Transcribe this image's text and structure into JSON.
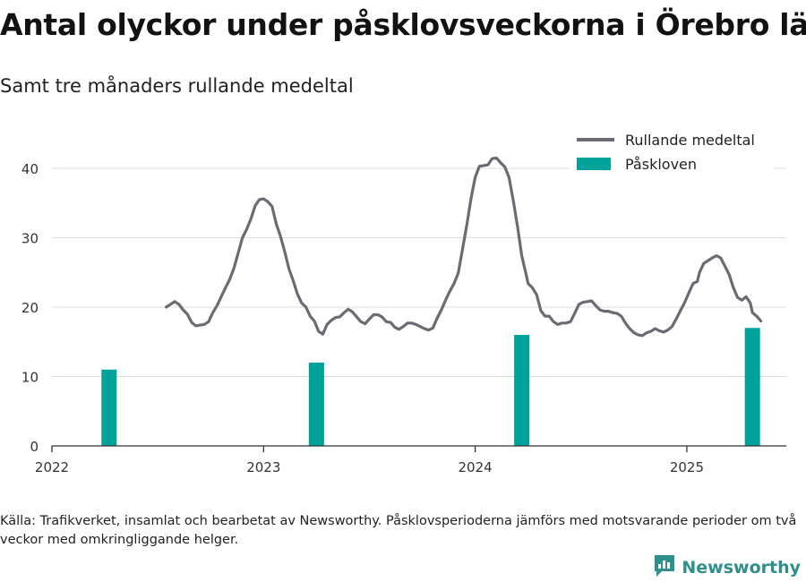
{
  "title": "Antal olyckor under påsklovsveckorna i Örebro län",
  "subtitle": "Samt tre månaders rullande medeltal",
  "source": "Källa: Trafikverket, insamlat och bearbetat av Newsworthy. Påsklovsperioderna jämförs med motsvarande perioder om två veckor med omkringliggande helger.",
  "brand": {
    "name": "Newsworthy",
    "logo_icon": "bar-chart-icon",
    "color": "#2f8f8c"
  },
  "chart_data": {
    "type": "bar",
    "xlim": [
      2022.0,
      2025.47
    ],
    "ylim": [
      0,
      40
    ],
    "yticks": [
      0,
      10,
      20,
      30,
      40
    ],
    "xticks": [
      {
        "value": 2022,
        "label": "2022"
      },
      {
        "value": 2023,
        "label": "2023"
      },
      {
        "value": 2024,
        "label": "2024"
      },
      {
        "value": 2025,
        "label": "2025"
      }
    ],
    "grid": "horizontal",
    "legend": {
      "placement": "top-right"
    },
    "series": [
      {
        "name": "Rullande medeltal",
        "kind": "line",
        "color": "#6b6b73",
        "points": [
          [
            2022.54,
            20.0
          ],
          [
            2022.56,
            20.4
          ],
          [
            2022.58,
            20.8
          ],
          [
            2022.6,
            20.4
          ],
          [
            2022.62,
            19.6
          ],
          [
            2022.64,
            19.0
          ],
          [
            2022.66,
            17.8
          ],
          [
            2022.68,
            17.3
          ],
          [
            2022.7,
            17.4
          ],
          [
            2022.72,
            17.5
          ],
          [
            2022.74,
            17.9
          ],
          [
            2022.76,
            19.2
          ],
          [
            2022.78,
            20.2
          ],
          [
            2022.8,
            21.5
          ],
          [
            2022.82,
            22.8
          ],
          [
            2022.84,
            24.0
          ],
          [
            2022.86,
            25.6
          ],
          [
            2022.88,
            27.8
          ],
          [
            2022.9,
            30.0
          ],
          [
            2022.92,
            31.2
          ],
          [
            2022.94,
            32.7
          ],
          [
            2022.96,
            34.6
          ],
          [
            2022.98,
            35.5
          ],
          [
            2023.0,
            35.6
          ],
          [
            2023.02,
            35.2
          ],
          [
            2023.04,
            34.5
          ],
          [
            2023.06,
            32.0
          ],
          [
            2023.08,
            30.2
          ],
          [
            2023.1,
            28.0
          ],
          [
            2023.12,
            25.5
          ],
          [
            2023.14,
            23.8
          ],
          [
            2023.16,
            21.9
          ],
          [
            2023.18,
            20.6
          ],
          [
            2023.2,
            20.0
          ],
          [
            2023.22,
            18.7
          ],
          [
            2023.24,
            18.0
          ],
          [
            2023.26,
            16.5
          ],
          [
            2023.28,
            16.1
          ],
          [
            2023.3,
            17.5
          ],
          [
            2023.32,
            18.1
          ],
          [
            2023.34,
            18.5
          ],
          [
            2023.36,
            18.6
          ],
          [
            2023.38,
            19.2
          ],
          [
            2023.4,
            19.7
          ],
          [
            2023.42,
            19.3
          ],
          [
            2023.44,
            18.6
          ],
          [
            2023.46,
            17.9
          ],
          [
            2023.48,
            17.6
          ],
          [
            2023.5,
            18.3
          ],
          [
            2023.52,
            18.9
          ],
          [
            2023.54,
            18.9
          ],
          [
            2023.56,
            18.6
          ],
          [
            2023.58,
            17.9
          ],
          [
            2023.6,
            17.8
          ],
          [
            2023.62,
            17.1
          ],
          [
            2023.64,
            16.8
          ],
          [
            2023.66,
            17.2
          ],
          [
            2023.68,
            17.7
          ],
          [
            2023.7,
            17.7
          ],
          [
            2023.72,
            17.5
          ],
          [
            2023.74,
            17.2
          ],
          [
            2023.76,
            16.9
          ],
          [
            2023.78,
            16.7
          ],
          [
            2023.8,
            17.0
          ],
          [
            2023.82,
            18.4
          ],
          [
            2023.84,
            19.6
          ],
          [
            2023.86,
            21.0
          ],
          [
            2023.88,
            22.3
          ],
          [
            2023.9,
            23.4
          ],
          [
            2023.92,
            24.9
          ],
          [
            2023.94,
            28.3
          ],
          [
            2023.96,
            31.8
          ],
          [
            2023.98,
            35.6
          ],
          [
            2024.0,
            38.7
          ],
          [
            2024.02,
            40.3
          ],
          [
            2024.04,
            40.4
          ],
          [
            2024.06,
            40.5
          ],
          [
            2024.08,
            41.4
          ],
          [
            2024.1,
            41.5
          ],
          [
            2024.12,
            40.8
          ],
          [
            2024.14,
            40.2
          ],
          [
            2024.16,
            38.7
          ],
          [
            2024.18,
            35.3
          ],
          [
            2024.2,
            31.6
          ],
          [
            2024.22,
            27.4
          ],
          [
            2024.24,
            24.8
          ],
          [
            2024.25,
            23.4
          ],
          [
            2024.27,
            22.8
          ],
          [
            2024.29,
            21.8
          ],
          [
            2024.31,
            19.5
          ],
          [
            2024.33,
            18.7
          ],
          [
            2024.35,
            18.7
          ],
          [
            2024.37,
            17.9
          ],
          [
            2024.39,
            17.5
          ],
          [
            2024.41,
            17.7
          ],
          [
            2024.43,
            17.7
          ],
          [
            2024.45,
            17.9
          ],
          [
            2024.47,
            19.1
          ],
          [
            2024.49,
            20.4
          ],
          [
            2024.51,
            20.7
          ],
          [
            2024.53,
            20.8
          ],
          [
            2024.55,
            20.9
          ],
          [
            2024.57,
            20.2
          ],
          [
            2024.59,
            19.6
          ],
          [
            2024.61,
            19.4
          ],
          [
            2024.63,
            19.4
          ],
          [
            2024.65,
            19.2
          ],
          [
            2024.67,
            19.1
          ],
          [
            2024.69,
            18.7
          ],
          [
            2024.71,
            17.7
          ],
          [
            2024.73,
            16.9
          ],
          [
            2024.75,
            16.3
          ],
          [
            2024.77,
            16.0
          ],
          [
            2024.79,
            15.9
          ],
          [
            2024.81,
            16.3
          ],
          [
            2024.83,
            16.5
          ],
          [
            2024.85,
            16.9
          ],
          [
            2024.87,
            16.6
          ],
          [
            2024.89,
            16.4
          ],
          [
            2024.91,
            16.7
          ],
          [
            2024.93,
            17.2
          ],
          [
            2024.95,
            18.3
          ],
          [
            2024.97,
            19.5
          ],
          [
            2024.99,
            20.7
          ],
          [
            2025.01,
            22.1
          ],
          [
            2025.03,
            23.4
          ],
          [
            2025.05,
            23.7
          ],
          [
            2025.06,
            25.0
          ],
          [
            2025.08,
            26.3
          ],
          [
            2025.1,
            26.7
          ],
          [
            2025.12,
            27.1
          ],
          [
            2025.14,
            27.4
          ],
          [
            2025.16,
            27.1
          ],
          [
            2025.18,
            25.9
          ],
          [
            2025.2,
            24.7
          ],
          [
            2025.22,
            22.8
          ],
          [
            2025.24,
            21.4
          ],
          [
            2025.26,
            21.0
          ],
          [
            2025.28,
            21.5
          ],
          [
            2025.3,
            20.6
          ],
          [
            2025.31,
            19.2
          ],
          [
            2025.33,
            18.7
          ],
          [
            2025.35,
            18.0
          ]
        ]
      },
      {
        "name": "Påskloven",
        "kind": "bar",
        "color": "#00a39a",
        "bar_width_years": 0.072,
        "points": [
          [
            2022.27,
            11
          ],
          [
            2023.25,
            12
          ],
          [
            2024.22,
            16
          ],
          [
            2025.31,
            17
          ]
        ]
      }
    ]
  }
}
